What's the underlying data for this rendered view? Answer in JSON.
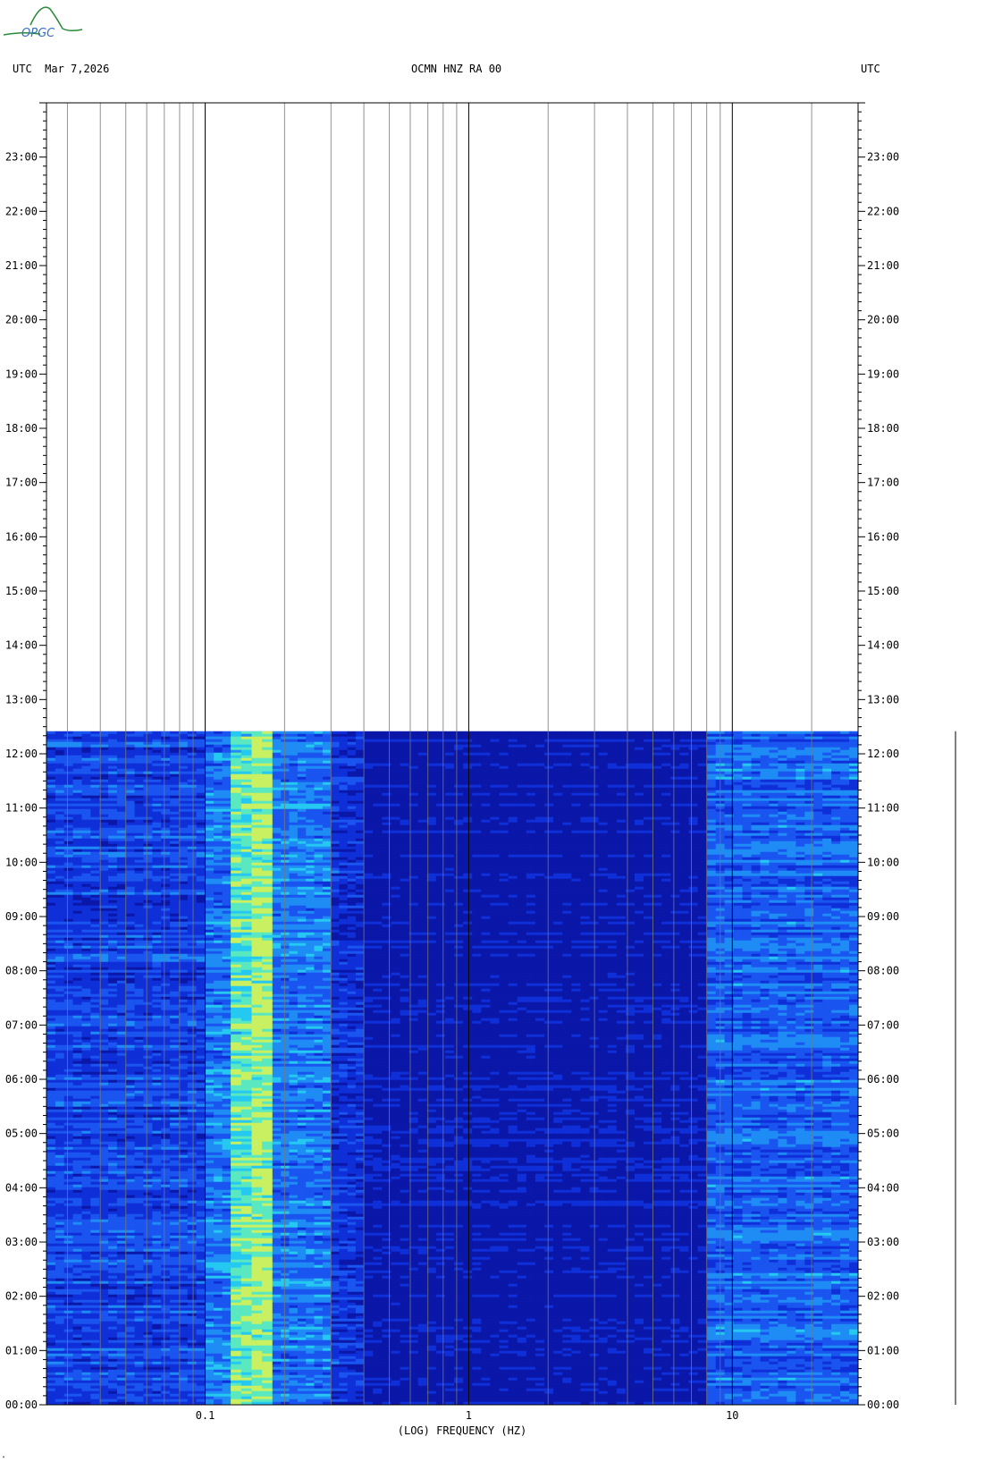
{
  "header": {
    "left": "UTC  Mar 7,2026",
    "center": "OCMN HNZ RA 00",
    "right": "UTC"
  },
  "logo": {
    "text": "OPGC",
    "colors": [
      "#2a8a3a",
      "#3a6fc0"
    ]
  },
  "footer_mark": "\"",
  "chart_data": {
    "type": "heatmap",
    "title": "OCMN HNZ RA 00",
    "xlabel": "(LOG) FREQUENCY (HZ)",
    "ylabel": "",
    "x_scale": "log",
    "xlim": [
      0.025,
      30
    ],
    "x_major_ticks": [
      0.1,
      1,
      10
    ],
    "x_tick_labels": [
      "0.1",
      "1",
      "10"
    ],
    "ylim": [
      "00:00",
      "24:00"
    ],
    "y_tick_labels": [
      "00:00",
      "01:00",
      "02:00",
      "03:00",
      "04:00",
      "05:00",
      "06:00",
      "07:00",
      "08:00",
      "09:00",
      "10:00",
      "11:00",
      "12:00",
      "13:00",
      "14:00",
      "15:00",
      "16:00",
      "17:00",
      "18:00",
      "19:00",
      "20:00",
      "21:00",
      "22:00",
      "23:00"
    ],
    "data_end_time": "12:25",
    "grid": true,
    "colormap": [
      "#0a17a8",
      "#0f2fd8",
      "#1a55f0",
      "#1f8cf5",
      "#25c8f0",
      "#5ae8c0",
      "#c8f060"
    ],
    "background": "#0c1fb8",
    "energy_bands": [
      {
        "f_min": 0.025,
        "f_max": 0.1,
        "level": 0.3
      },
      {
        "f_min": 0.1,
        "f_max": 0.125,
        "level": 0.45
      },
      {
        "f_min": 0.125,
        "f_max": 0.15,
        "level": 0.78
      },
      {
        "f_min": 0.15,
        "f_max": 0.18,
        "level": 0.88
      },
      {
        "f_min": 0.18,
        "f_max": 0.3,
        "level": 0.45
      },
      {
        "f_min": 0.3,
        "f_max": 0.4,
        "level": 0.22
      },
      {
        "f_min": 0.4,
        "f_max": 8.0,
        "level": 0.05
      },
      {
        "f_min": 8.0,
        "f_max": 30,
        "level": 0.38
      }
    ]
  }
}
